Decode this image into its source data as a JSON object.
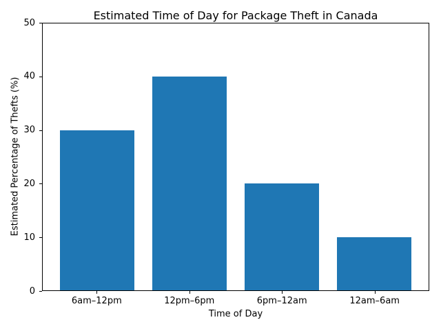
{
  "chart_data": {
    "type": "bar",
    "title": "Estimated Time of Day for Package Theft in Canada",
    "xlabel": "Time of Day",
    "ylabel": "Estimated Percentage of Thefts (%)",
    "categories": [
      "6am–12pm",
      "12pm–6pm",
      "6pm–12am",
      "12am–6am"
    ],
    "values": [
      30,
      40,
      20,
      10
    ],
    "ylim": [
      0,
      50
    ],
    "yticks": [
      0,
      10,
      20,
      30,
      40,
      50
    ],
    "bar_color": "#1f77b4",
    "grid": false,
    "legend": "none",
    "background_color": "#ffffff"
  }
}
